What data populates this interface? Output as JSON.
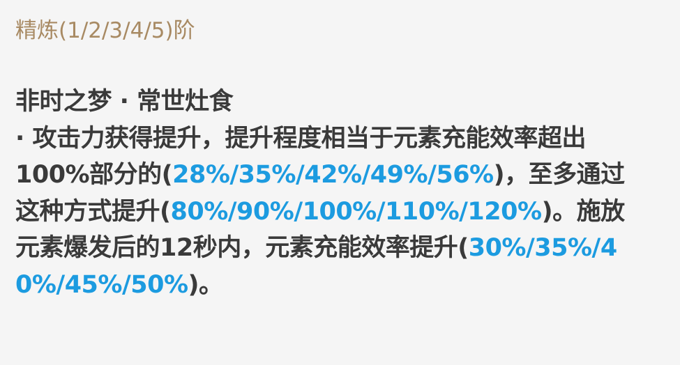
{
  "refine_label": "精炼(1/2/3/4/5)阶",
  "passive": {
    "name": "非时之梦 · 常世灶食",
    "lines": [
      [
        {
          "t": " · 攻击力获得提升，提升程度相当于元素充能效率超出",
          "hl": false
        }
      ],
      [
        {
          "t": "100%部分的(",
          "hl": false
        },
        {
          "t": "28%/35%/42%/49%/56%",
          "hl": true
        },
        {
          "t": ")，至多通过",
          "hl": false
        }
      ],
      [
        {
          "t": "这种方式提升(",
          "hl": false
        },
        {
          "t": "80%/90%/100%/110%/120%",
          "hl": true
        },
        {
          "t": ")。施放",
          "hl": false
        }
      ],
      [
        {
          "t": "元素爆发后的12秒内，元素充能效率提升(",
          "hl": false
        },
        {
          "t": "30%/35%/4",
          "hl": true
        }
      ],
      [
        {
          "t": "0%/45%/50%",
          "hl": true
        },
        {
          "t": ")。",
          "hl": false
        }
      ]
    ]
  },
  "colors": {
    "background": "#f5f5f5",
    "refine": "#a88a63",
    "text": "#3a3a3a",
    "highlight": "#1c9be0"
  }
}
